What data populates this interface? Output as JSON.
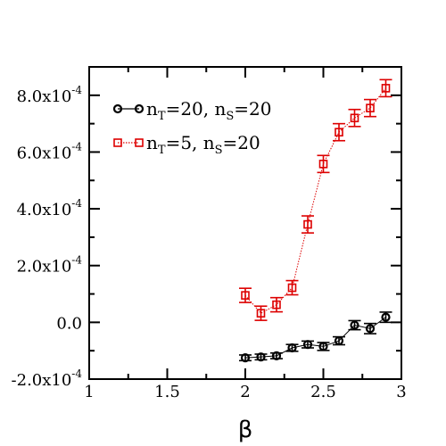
{
  "chart_data": {
    "type": "scatter",
    "title": "",
    "xlabel": "β",
    "ylabel": "",
    "xlim": [
      1,
      3
    ],
    "ylim": [
      -0.0002,
      0.0009
    ],
    "grid": false,
    "legend_position": "top-left",
    "x_ticks": [
      {
        "value": 1,
        "label": "1"
      },
      {
        "value": 1.5,
        "label": "1.5"
      },
      {
        "value": 2,
        "label": "2"
      },
      {
        "value": 2.5,
        "label": "2.5"
      },
      {
        "value": 3,
        "label": "3"
      }
    ],
    "y_ticks": [
      {
        "value": -0.0002,
        "mantissa": "-2.0x10",
        "exponent": "-4"
      },
      {
        "value": 0,
        "mantissa": "0.0",
        "exponent": ""
      },
      {
        "value": 0.0002,
        "mantissa": "2.0x10",
        "exponent": "-4"
      },
      {
        "value": 0.0004,
        "mantissa": "4.0x10",
        "exponent": "-4"
      },
      {
        "value": 0.0006,
        "mantissa": "6.0x10",
        "exponent": "-4"
      },
      {
        "value": 0.0008,
        "mantissa": "8.0x10",
        "exponent": "-4"
      }
    ],
    "series": [
      {
        "name": "nT=20, nS=20",
        "legend": {
          "a": "n",
          "a_sub": "T",
          "b": "=20, n",
          "b_sub": "S",
          "c": "=20"
        },
        "color": "#000000",
        "marker": "circle",
        "line": "solid",
        "x": [
          2.0,
          2.1,
          2.2,
          2.3,
          2.4,
          2.5,
          2.6,
          2.7,
          2.8,
          2.9
        ],
        "y": [
          -0.000125,
          -0.000122,
          -0.000118,
          -9e-05,
          -7.8e-05,
          -8.5e-05,
          -6.5e-05,
          -1e-05,
          -2.2e-05,
          1.8e-05
        ],
        "err": [
          1e-05,
          1e-05,
          1e-05,
          1.2e-05,
          1.2e-05,
          1.4e-05,
          1.4e-05,
          1.6e-05,
          1.8e-05,
          1.8e-05
        ]
      },
      {
        "name": "nT=5, nS=20",
        "legend": {
          "a": "n",
          "a_sub": "T",
          "b": "=5, n",
          "b_sub": "S",
          "c": "=20"
        },
        "color": "#dd0000",
        "marker": "square",
        "line": "dotted",
        "x": [
          2.0,
          2.1,
          2.2,
          2.3,
          2.4,
          2.5,
          2.6,
          2.7,
          2.8,
          2.9
        ],
        "y": [
          9.5e-05,
          3.2e-05,
          6.2e-05,
          0.000122,
          0.000345,
          0.000558,
          0.00067,
          0.00072,
          0.000755,
          0.000825
        ],
        "err": [
          2.5e-05,
          2.5e-05,
          2.5e-05,
          2.5e-05,
          3e-05,
          3e-05,
          3e-05,
          3e-05,
          3e-05,
          3e-05
        ]
      }
    ]
  }
}
